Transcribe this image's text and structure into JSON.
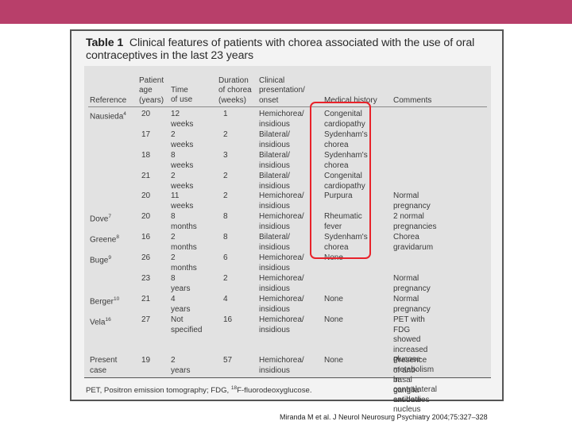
{
  "title": {
    "label": "Table 1",
    "text": "Clinical features of patients with chorea associated with the use of oral contraceptives in the last 23 years"
  },
  "columns": [
    {
      "key": "reference",
      "label": "Reference"
    },
    {
      "key": "age",
      "label": "Patient\nage\n(years)"
    },
    {
      "key": "time",
      "label": "Time\nof use"
    },
    {
      "key": "duration",
      "label": "Duration\nof chorea\n(weeks)"
    },
    {
      "key": "presentation",
      "label": "Clinical\npresentation/\nonset"
    },
    {
      "key": "history",
      "label": "Medical history"
    },
    {
      "key": "comments",
      "label": "Comments"
    }
  ],
  "rows": [
    {
      "reference": "Nausieda",
      "ref_sup": "4",
      "age": "20",
      "time": "12 weeks",
      "duration": "1",
      "presentation": "Hemichorea/\ninsidious",
      "history": "Congenital\ncardiopathy",
      "comments": ""
    },
    {
      "reference": "",
      "ref_sup": "",
      "age": "17",
      "time": "2 weeks",
      "duration": "2",
      "presentation": "Bilateral/\ninsidious",
      "history": "Sydenham's\nchorea",
      "comments": ""
    },
    {
      "reference": "",
      "ref_sup": "",
      "age": "18",
      "time": "8 weeks",
      "duration": "3",
      "presentation": "Bilateral/\ninsidious",
      "history": "Sydenham's\nchorea",
      "comments": ""
    },
    {
      "reference": "",
      "ref_sup": "",
      "age": "21",
      "time": "2 weeks",
      "duration": "2",
      "presentation": "Bilateral/\ninsidious",
      "history": "Congenital\ncardiopathy",
      "comments": ""
    },
    {
      "reference": "",
      "ref_sup": "",
      "age": "20",
      "time": "11 weeks",
      "duration": "2",
      "presentation": "Hemichorea/\ninsidious",
      "history": "Purpura",
      "comments": "Normal pregnancy"
    },
    {
      "reference": "Dove",
      "ref_sup": "7",
      "age": "20",
      "time": "8 months",
      "duration": "8",
      "presentation": "Hemichorea/\ninsidious",
      "history": "Rheumatic fever",
      "comments": "2 normal pregnancies"
    },
    {
      "reference": "Greene",
      "ref_sup": "8",
      "age": "16",
      "time": "2 months",
      "duration": "8",
      "presentation": "Bilateral/\ninsidious",
      "history": "Sydenham's\nchorea",
      "comments": "Chorea gravidarum"
    },
    {
      "reference": "Buge",
      "ref_sup": "9",
      "age": "26",
      "time": "2 months",
      "duration": "6",
      "presentation": "Hemichorea/\ninsidious",
      "history": "None",
      "comments": ""
    },
    {
      "reference": "",
      "ref_sup": "",
      "age": "23",
      "time": "8 years",
      "duration": "2",
      "presentation": "Hemichorea/\ninsidious",
      "history": "",
      "comments": "Normal pregnancy"
    },
    {
      "reference": "Berger",
      "ref_sup": "10",
      "age": "21",
      "time": "4 years",
      "duration": "4",
      "presentation": "Hemichorea/\ninsidious",
      "history": "None",
      "comments": "Normal pregnancy"
    },
    {
      "reference": "Vela",
      "ref_sup": "16",
      "age": "27",
      "time": "Not\nspecified",
      "duration": "16",
      "presentation": "Hemichorea/\ninsidious",
      "history": "None",
      "comments": "PET with FDG showed\nincreased glucose\nmetabolism in contralateral\ncaudate nucleus"
    },
    {
      "reference": "Present\ncase",
      "ref_sup": "",
      "age": "19",
      "time": "2 years",
      "duration": "57",
      "presentation": "Hemichorea/\ninsidious",
      "history": "None",
      "comments": "Presence of anti-basal\nganglia antibodies"
    }
  ],
  "footnote": {
    "part1": "PET, Positron emission tomography; FDG, ",
    "sup": "18",
    "part2": "F-fluorodeoxyglucose."
  },
  "citation": "Miranda M et al. J Neurol Neurosurg Psychiatry 2004;75:327–328",
  "colors": {
    "banner": "#b83f6a",
    "highlight_box": "#e8222a",
    "table_bg": "#e2e2e2",
    "panel_bg": "#f3f3f3"
  }
}
